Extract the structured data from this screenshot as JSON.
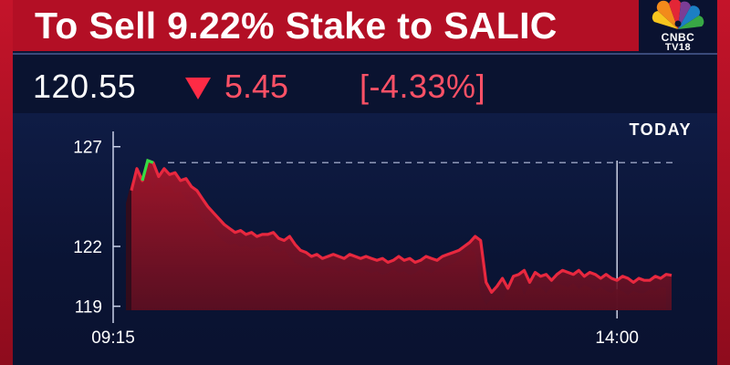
{
  "header": {
    "headline": "To Sell 9.22% Stake to SALIC",
    "logo": {
      "name": "CNBC",
      "sub": "TV18",
      "icon": "peacock-logo-icon"
    }
  },
  "quote": {
    "price": "120.55",
    "change": "5.45",
    "change_pct": "[-4.33%]",
    "direction_icon": "down-triangle-icon",
    "colors": {
      "negative": "#ff5166",
      "positive": "#33dd44"
    }
  },
  "chart_data": {
    "type": "area",
    "title": "",
    "period_label": "TODAY",
    "xlabel": "",
    "ylabel": "",
    "x_ticks": [
      "09:15",
      "14:00"
    ],
    "y_ticks": [
      127,
      122,
      119
    ],
    "ylim": [
      118.8,
      127.4
    ],
    "reference_line": {
      "label": "",
      "value": 126.2,
      "style": "dashed"
    },
    "marker_time": "14:00",
    "grid": false,
    "series": [
      {
        "name": "",
        "color": "#e8283f",
        "values": [
          124.8,
          125.9,
          125.3,
          126.3,
          126.2,
          125.5,
          125.9,
          125.6,
          125.7,
          125.3,
          125.4,
          125.0,
          124.8,
          124.4,
          124.0,
          123.7,
          123.4,
          123.1,
          122.9,
          122.7,
          122.8,
          122.6,
          122.7,
          122.5,
          122.6,
          122.6,
          122.7,
          122.4,
          122.3,
          122.5,
          122.1,
          121.8,
          121.7,
          121.5,
          121.6,
          121.4,
          121.5,
          121.6,
          121.5,
          121.4,
          121.6,
          121.5,
          121.4,
          121.5,
          121.4,
          121.3,
          121.4,
          121.2,
          121.3,
          121.5,
          121.3,
          121.4,
          121.2,
          121.3,
          121.5,
          121.4,
          121.3,
          121.5,
          121.6,
          121.7,
          121.8,
          122.0,
          122.2,
          122.5,
          122.3,
          120.2,
          119.7,
          120.0,
          120.4,
          119.9,
          120.5,
          120.6,
          120.8,
          120.2,
          120.7,
          120.5,
          120.6,
          120.3,
          120.6,
          120.8,
          120.7,
          120.6,
          120.8,
          120.5,
          120.7,
          120.6,
          120.4,
          120.6,
          120.4,
          120.3,
          120.5,
          120.4,
          120.2,
          120.4,
          120.3,
          120.3,
          120.5,
          120.4,
          120.6,
          120.55
        ]
      }
    ]
  }
}
